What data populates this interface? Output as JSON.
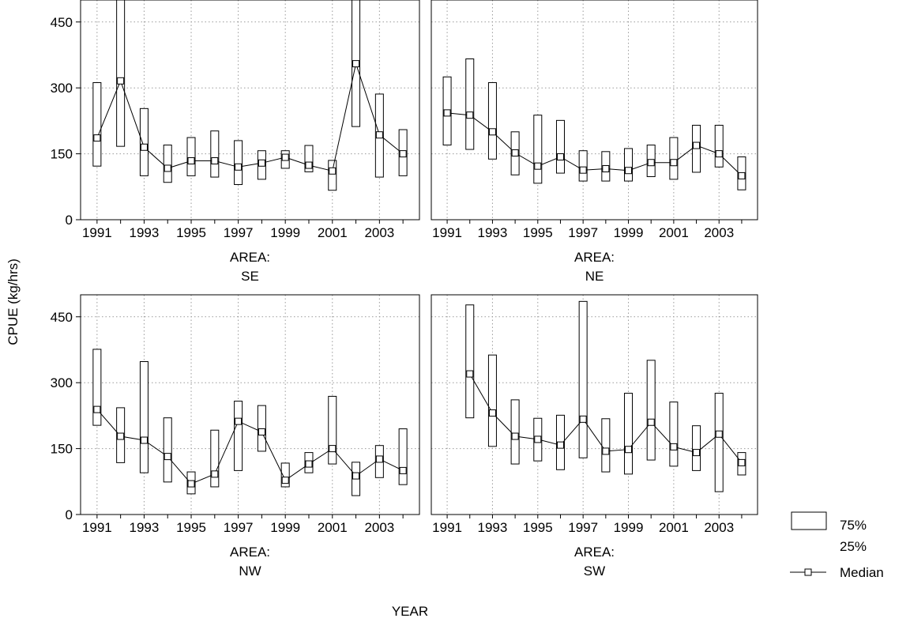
{
  "chart_data": {
    "type": "box",
    "ylabel": "CPUE (kg/hrs)",
    "xlabel": "YEAR",
    "ylim": [
      0,
      500
    ],
    "yticks": [
      0,
      150,
      300,
      450
    ],
    "xlim": [
      1990.3,
      2004.7
    ],
    "xticks": [
      1991,
      1993,
      1995,
      1997,
      1999,
      2001,
      2003
    ],
    "grid": true,
    "panel_label_prefix": "AREA:",
    "legend": {
      "box_top_label": "75%",
      "box_bottom_label": "25%",
      "median_label": "Median",
      "placement": "bottom-right"
    },
    "panels": [
      {
        "area": "SE",
        "years": [
          1991,
          1992,
          1993,
          1994,
          1995,
          1996,
          1997,
          1998,
          1999,
          2000,
          2001,
          2002,
          2003,
          2004
        ],
        "q25": [
          122,
          167,
          100,
          85,
          100,
          97,
          80,
          92,
          117,
          109,
          67,
          212,
          97,
          100
        ],
        "q75": [
          312,
          500,
          253,
          170,
          187,
          202,
          180,
          157,
          157,
          169,
          135,
          500,
          286,
          205
        ],
        "median": [
          186,
          316,
          165,
          117,
          134,
          134,
          120,
          129,
          142,
          124,
          111,
          355,
          193,
          150
        ]
      },
      {
        "area": "NE",
        "years": [
          1991,
          1992,
          1993,
          1994,
          1995,
          1996,
          1997,
          1998,
          1999,
          2000,
          2001,
          2002,
          2003,
          2004
        ],
        "q25": [
          170,
          160,
          138,
          102,
          83,
          106,
          88,
          88,
          88,
          98,
          92,
          108,
          120,
          68
        ],
        "q75": [
          325,
          366,
          312,
          200,
          238,
          226,
          157,
          155,
          162,
          170,
          187,
          215,
          215,
          143
        ],
        "median": [
          243,
          238,
          200,
          152,
          122,
          143,
          113,
          116,
          112,
          130,
          130,
          169,
          150,
          100
        ]
      },
      {
        "area": "NW",
        "years": [
          1991,
          1992,
          1993,
          1994,
          1995,
          1996,
          1997,
          1998,
          1999,
          2000,
          2001,
          2002,
          2003,
          2004
        ],
        "q25": [
          203,
          118,
          95,
          74,
          47,
          63,
          100,
          144,
          63,
          95,
          115,
          43,
          84,
          68
        ],
        "q75": [
          376,
          243,
          348,
          220,
          97,
          192,
          258,
          248,
          117,
          141,
          269,
          119,
          157,
          195
        ],
        "median": [
          239,
          178,
          169,
          132,
          70,
          92,
          212,
          188,
          78,
          115,
          150,
          88,
          126,
          100
        ]
      },
      {
        "area": "SW",
        "years": [
          1991,
          1992,
          1993,
          1994,
          1995,
          1996,
          1997,
          1998,
          1999,
          2000,
          2001,
          2002,
          2003,
          2004
        ],
        "q25": [
          null,
          220,
          155,
          115,
          122,
          102,
          129,
          97,
          92,
          124,
          110,
          100,
          52,
          90
        ],
        "q75": [
          null,
          477,
          363,
          261,
          219,
          226,
          485,
          218,
          276,
          351,
          256,
          202,
          276,
          141
        ],
        "median": [
          null,
          320,
          231,
          178,
          171,
          158,
          217,
          144,
          148,
          210,
          154,
          141,
          183,
          118
        ]
      }
    ]
  }
}
